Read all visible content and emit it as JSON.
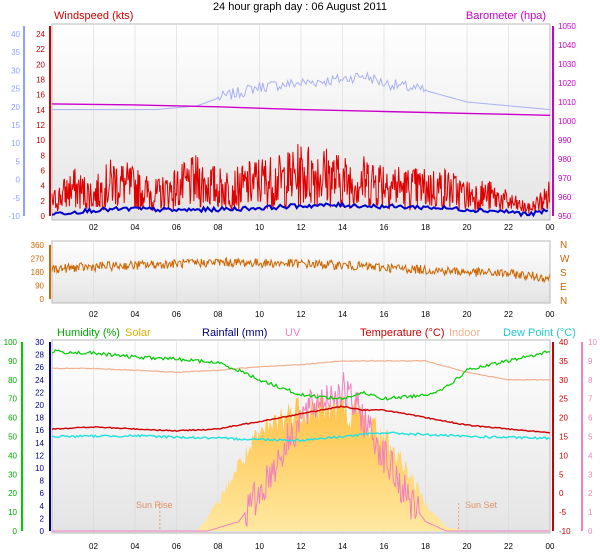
{
  "title": "24 hour graph day : 06 August 2011",
  "colors": {
    "wind": "#e00000",
    "wind_dark": "#0000cc",
    "baro": "#cc00cc",
    "baro_faint": "#a8b0f0",
    "direction": "#cc6600",
    "humidity": "#00cc00",
    "solar": "#ffd060",
    "rain": "#000080",
    "uv": "#f080c0",
    "temp": "#cc0000",
    "indoor": "#f0b090",
    "dew": "#20e0e0",
    "axis_blue": "#8fa0ff",
    "axis_magenta": "#cc00cc"
  },
  "chart_data": [
    {
      "type": "line",
      "name": "wind-baro",
      "left_axis_label": "Windspeed (kts)",
      "right_axis_label": "Barometer (hpa)",
      "x_ticks": [
        "02",
        "04",
        "06",
        "08",
        "10",
        "12",
        "14",
        "16",
        "18",
        "20",
        "22",
        "00"
      ],
      "left_ticks_faint": [
        "40",
        "35",
        "30",
        "25",
        "20",
        "15",
        "10",
        "5",
        "0",
        "-5",
        "-10"
      ],
      "left_ticks": [
        "24",
        "22",
        "20",
        "18",
        "16",
        "14",
        "12",
        "10",
        "8",
        "6",
        "4",
        "2",
        "0"
      ],
      "right_ticks": [
        "1050",
        "1040",
        "1030",
        "1020",
        "1010",
        "1000",
        "990",
        "980",
        "970",
        "960",
        "950"
      ],
      "right_lim": [
        950,
        1050
      ],
      "left_lim": [
        0,
        25
      ],
      "left_faint_lim": [
        -10,
        40
      ],
      "series": [
        {
          "id": "gust",
          "axis": "left",
          "x": [
            0,
            1,
            2,
            3,
            4,
            5,
            6,
            7,
            8,
            9,
            10,
            11,
            12,
            13,
            14,
            15,
            16,
            17,
            18,
            19,
            20,
            21,
            22,
            23,
            24
          ],
          "y": [
            2,
            4,
            3,
            5,
            4,
            3,
            4,
            5,
            4,
            4,
            5,
            5,
            6,
            6,
            5,
            5,
            5,
            4,
            4,
            4,
            3,
            3,
            2,
            1,
            3
          ]
        },
        {
          "id": "mean",
          "axis": "left",
          "x": [
            0,
            2,
            4,
            6,
            8,
            10,
            12,
            14,
            16,
            18,
            20,
            22,
            23,
            24
          ],
          "y": [
            0.3,
            0.8,
            1.0,
            0.8,
            0.9,
            1.1,
            1.4,
            1.5,
            1.3,
            1.2,
            0.9,
            0.6,
            0.2,
            0.8
          ]
        },
        {
          "id": "barometer",
          "axis": "right",
          "x": [
            0,
            4,
            8,
            12,
            16,
            20,
            24
          ],
          "y": [
            1009,
            1008.5,
            1007.5,
            1006,
            1005,
            1004,
            1003
          ]
        },
        {
          "id": "faint",
          "axis": "left_faint",
          "x": [
            0,
            5,
            7,
            8,
            10,
            12,
            14,
            15,
            16,
            18,
            20,
            22,
            24
          ],
          "y": [
            18,
            18,
            19,
            21,
            24,
            25,
            26,
            27,
            25,
            23,
            20,
            19,
            18
          ]
        }
      ]
    },
    {
      "type": "line",
      "name": "wind-direction",
      "left_ticks": [
        "360",
        "270",
        "180",
        "90",
        "0"
      ],
      "right_ticks": [
        "N",
        "W",
        "S",
        "E",
        "N"
      ],
      "x_ticks": [
        "02",
        "04",
        "06",
        "08",
        "10",
        "12",
        "14",
        "16",
        "18",
        "20",
        "22",
        "00"
      ],
      "series": [
        {
          "id": "direction",
          "x": [
            0,
            2,
            4,
            6,
            8,
            10,
            12,
            14,
            16,
            18,
            20,
            22,
            24
          ],
          "y": [
            200,
            215,
            225,
            235,
            245,
            240,
            235,
            225,
            210,
            195,
            180,
            170,
            140
          ]
        }
      ]
    },
    {
      "type": "line",
      "name": "temp-humidity",
      "labels": {
        "humidity": "Humidity (%)",
        "solar": "Solar",
        "rain": "Rainfall (mm)",
        "uv": "UV",
        "temp": "Temperature (°C)",
        "indoor": "Indoor",
        "dew": "Dew Point (°C)"
      },
      "sun_rise": "Sun Rise",
      "sun_set": "Sun Set",
      "humidity_ticks": [
        "100",
        "90",
        "80",
        "70",
        "60",
        "50",
        "40",
        "30",
        "20",
        "10",
        "0"
      ],
      "rain_ticks": [
        "30",
        "28",
        "26",
        "24",
        "22",
        "20",
        "18",
        "16",
        "14",
        "12",
        "10",
        "8",
        "6",
        "4",
        "2",
        "0"
      ],
      "temp_ticks": [
        "40",
        "35",
        "30",
        "25",
        "20",
        "15",
        "10",
        "5",
        "0",
        "-5",
        "-10"
      ],
      "uv_ticks": [
        "10",
        "9",
        "8",
        "7",
        "6",
        "5",
        "4",
        "3",
        "2",
        "1",
        "0"
      ],
      "x_ticks": [
        "02",
        "04",
        "06",
        "08",
        "10",
        "12",
        "14",
        "16",
        "18",
        "20",
        "22",
        "00"
      ],
      "series": [
        {
          "id": "humidity",
          "x": [
            0,
            2,
            4,
            6,
            8,
            9,
            10,
            12,
            14,
            15,
            16,
            18,
            19,
            20,
            22,
            24
          ],
          "y": [
            95,
            94,
            92,
            91,
            89,
            85,
            80,
            72,
            70,
            73,
            70,
            72,
            76,
            85,
            90,
            95
          ]
        },
        {
          "id": "temp",
          "x": [
            0,
            2,
            4,
            6,
            8,
            10,
            12,
            14,
            15,
            16,
            18,
            20,
            22,
            24
          ],
          "y": [
            17,
            17.5,
            17,
            16.5,
            17,
            19,
            21,
            23,
            22,
            22,
            20,
            18,
            17,
            16
          ]
        },
        {
          "id": "indoor",
          "x": [
            0,
            2,
            4,
            6,
            8,
            10,
            12,
            14,
            16,
            18,
            20,
            22,
            24
          ],
          "y": [
            33,
            33,
            32.5,
            32,
            32.5,
            33.5,
            34,
            35,
            35,
            35,
            32,
            30,
            30
          ]
        },
        {
          "id": "dew",
          "x": [
            0,
            4,
            8,
            12,
            14,
            16,
            20,
            24
          ],
          "y": [
            15,
            15.2,
            14.5,
            14,
            15,
            16,
            15,
            14.5
          ]
        },
        {
          "id": "solar",
          "x": [
            0,
            7,
            8,
            9,
            10,
            11,
            12,
            13,
            14,
            15,
            16,
            17,
            18,
            19,
            20,
            24
          ],
          "y": [
            0,
            0,
            15,
            35,
            50,
            60,
            65,
            66,
            65,
            60,
            50,
            35,
            15,
            2,
            0,
            0
          ]
        },
        {
          "id": "uv",
          "x": [
            0,
            7.5,
            9,
            10,
            11,
            12,
            13,
            14,
            15,
            16,
            17,
            18,
            19,
            24
          ],
          "y": [
            0,
            0,
            0.5,
            2,
            4,
            6,
            7,
            7.5,
            6,
            4,
            2,
            0.5,
            0,
            0
          ]
        }
      ]
    }
  ]
}
